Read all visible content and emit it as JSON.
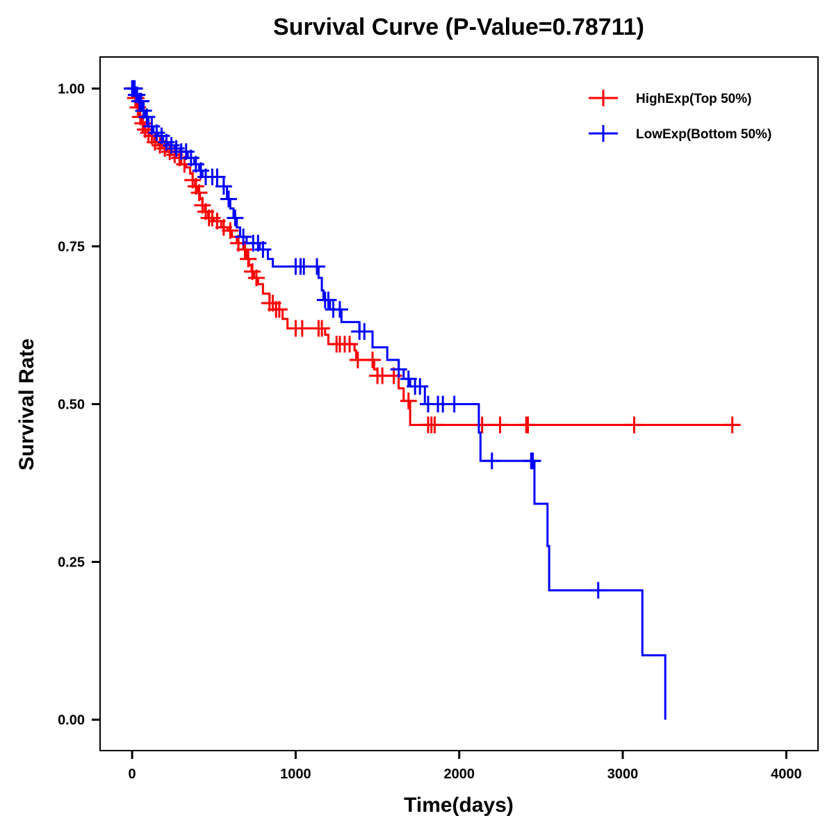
{
  "chart_data": {
    "type": "line",
    "subtype": "kaplan-meier-step",
    "title": "Survival Curve (P-Value=0.78711)",
    "xlabel": "Time(days)",
    "ylabel": "Survival Rate",
    "xlim": [
      -196,
      4194
    ],
    "ylim": [
      -0.049,
      1.05
    ],
    "x_ticks": [
      0,
      1000,
      2000,
      3000,
      4000
    ],
    "x_tick_labels": [
      "0",
      "1000",
      "2000",
      "3000",
      "4000"
    ],
    "y_ticks": [
      0,
      0.25,
      0.5,
      0.75,
      1.0
    ],
    "y_tick_labels": [
      "0.00",
      "0.25",
      "0.50",
      "0.75",
      "1.00"
    ],
    "grid": false,
    "legend": {
      "position": "top-right"
    },
    "series": [
      {
        "name": "HighExp(Top 50%)",
        "color": "#ff0000",
        "steps": [
          [
            0,
            1.0
          ],
          [
            15,
            0.985
          ],
          [
            30,
            0.97
          ],
          [
            45,
            0.955
          ],
          [
            60,
            0.945
          ],
          [
            75,
            0.935
          ],
          [
            95,
            0.93
          ],
          [
            110,
            0.925
          ],
          [
            135,
            0.915
          ],
          [
            160,
            0.91
          ],
          [
            185,
            0.905
          ],
          [
            215,
            0.9
          ],
          [
            240,
            0.895
          ],
          [
            265,
            0.89
          ],
          [
            300,
            0.88
          ],
          [
            330,
            0.875
          ],
          [
            355,
            0.865
          ],
          [
            370,
            0.855
          ],
          [
            385,
            0.845
          ],
          [
            400,
            0.835
          ],
          [
            415,
            0.825
          ],
          [
            430,
            0.815
          ],
          [
            445,
            0.805
          ],
          [
            465,
            0.795
          ],
          [
            500,
            0.79
          ],
          [
            545,
            0.78
          ],
          [
            585,
            0.775
          ],
          [
            610,
            0.765
          ],
          [
            640,
            0.755
          ],
          [
            680,
            0.745
          ],
          [
            700,
            0.73
          ],
          [
            715,
            0.72
          ],
          [
            730,
            0.71
          ],
          [
            745,
            0.7
          ],
          [
            770,
            0.69
          ],
          [
            800,
            0.675
          ],
          [
            840,
            0.66
          ],
          [
            880,
            0.65
          ],
          [
            920,
            0.635
          ],
          [
            950,
            0.62
          ],
          [
            1180,
            0.61
          ],
          [
            1200,
            0.595
          ],
          [
            1360,
            0.585
          ],
          [
            1370,
            0.57
          ],
          [
            1480,
            0.555
          ],
          [
            1500,
            0.545
          ],
          [
            1630,
            0.525
          ],
          [
            1660,
            0.505
          ],
          [
            1700,
            0.467
          ],
          [
            3720,
            0.467
          ]
        ],
        "censor_times": [
          5,
          10,
          20,
          25,
          35,
          50,
          65,
          80,
          100,
          120,
          140,
          170,
          200,
          230,
          260,
          290,
          320,
          370,
          390,
          410,
          430,
          450,
          470,
          490,
          520,
          560,
          600,
          650,
          690,
          710,
          735,
          760,
          840,
          860,
          880,
          900,
          1000,
          1040,
          1140,
          1160,
          1250,
          1270,
          1300,
          1330,
          1380,
          1470,
          1500,
          1530,
          1600,
          1690,
          1810,
          1830,
          1850,
          2140,
          2250,
          2410,
          2420,
          3070,
          3670
        ]
      },
      {
        "name": "LowExp(Bottom 50%)",
        "color": "#0000ff",
        "steps": [
          [
            0,
            1.0
          ],
          [
            20,
            0.99
          ],
          [
            40,
            0.98
          ],
          [
            60,
            0.965
          ],
          [
            80,
            0.955
          ],
          [
            100,
            0.94
          ],
          [
            130,
            0.93
          ],
          [
            160,
            0.925
          ],
          [
            190,
            0.915
          ],
          [
            220,
            0.91
          ],
          [
            260,
            0.905
          ],
          [
            300,
            0.9
          ],
          [
            340,
            0.89
          ],
          [
            380,
            0.88
          ],
          [
            410,
            0.87
          ],
          [
            430,
            0.86
          ],
          [
            560,
            0.845
          ],
          [
            580,
            0.825
          ],
          [
            600,
            0.81
          ],
          [
            620,
            0.795
          ],
          [
            640,
            0.78
          ],
          [
            660,
            0.765
          ],
          [
            700,
            0.755
          ],
          [
            780,
            0.745
          ],
          [
            830,
            0.73
          ],
          [
            860,
            0.718
          ],
          [
            1140,
            0.7
          ],
          [
            1160,
            0.68
          ],
          [
            1170,
            0.665
          ],
          [
            1210,
            0.65
          ],
          [
            1280,
            0.63
          ],
          [
            1390,
            0.615
          ],
          [
            1470,
            0.59
          ],
          [
            1560,
            0.57
          ],
          [
            1630,
            0.555
          ],
          [
            1660,
            0.54
          ],
          [
            1700,
            0.528
          ],
          [
            1790,
            0.5
          ],
          [
            2120,
            0.455
          ],
          [
            2130,
            0.41
          ],
          [
            2460,
            0.342
          ],
          [
            2540,
            0.275
          ],
          [
            2550,
            0.205
          ],
          [
            3120,
            0.102
          ],
          [
            3260,
            0.0
          ]
        ],
        "censor_times": [
          0,
          10,
          15,
          25,
          30,
          45,
          55,
          70,
          90,
          120,
          150,
          180,
          210,
          240,
          270,
          300,
          330,
          360,
          390,
          420,
          450,
          490,
          520,
          560,
          590,
          630,
          680,
          740,
          770,
          800,
          1000,
          1030,
          1050,
          1130,
          1180,
          1200,
          1230,
          1270,
          1390,
          1420,
          1630,
          1690,
          1730,
          1760,
          1810,
          1870,
          1900,
          1970,
          2200,
          2440,
          2450,
          2850
        ]
      }
    ]
  }
}
